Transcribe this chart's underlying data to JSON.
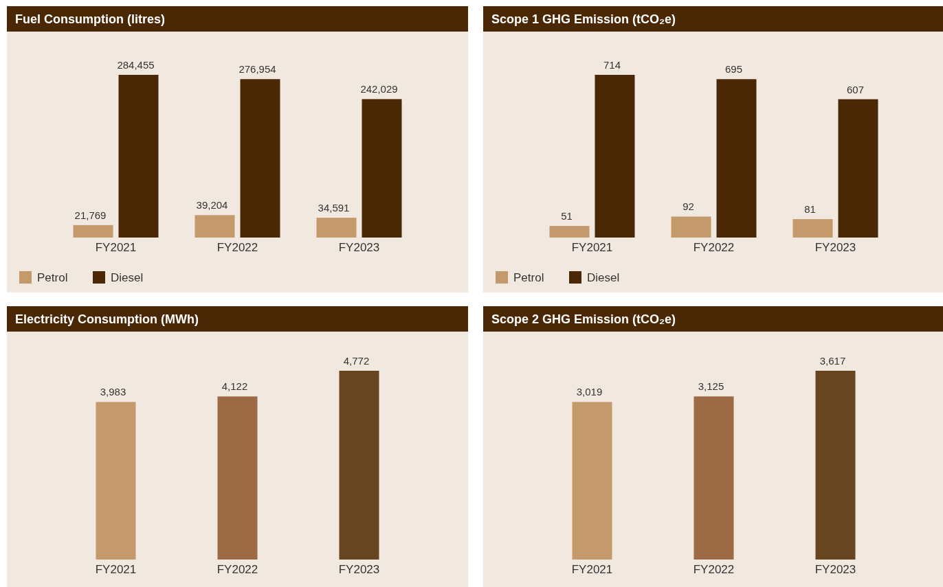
{
  "chart_data": [
    {
      "type": "bar",
      "title": "Fuel Consumption (litres)",
      "categories": [
        "FY2021",
        "FY2022",
        "FY2023"
      ],
      "legend": "bottom left",
      "series": [
        {
          "name": "Petrol",
          "color": "#c49a6c",
          "values": [
            21769,
            39204,
            34591
          ],
          "value_labels": [
            "21,769",
            "39,204",
            "34,591"
          ]
        },
        {
          "name": "Diesel",
          "color": "#4a2805",
          "values": [
            284455,
            276954,
            242029
          ],
          "value_labels": [
            "284,455",
            "276,954",
            "242,029"
          ]
        }
      ]
    },
    {
      "type": "bar",
      "title": "Scope 1 GHG Emission (tCO₂e)",
      "categories": [
        "FY2021",
        "FY2022",
        "FY2023"
      ],
      "legend": "bottom left",
      "series": [
        {
          "name": "Petrol",
          "color": "#c49a6c",
          "values": [
            51,
            92,
            81
          ],
          "value_labels": [
            "51",
            "92",
            "81"
          ]
        },
        {
          "name": "Diesel",
          "color": "#4a2805",
          "values": [
            714,
            695,
            607
          ],
          "value_labels": [
            "714",
            "695",
            "607"
          ]
        }
      ]
    },
    {
      "type": "bar",
      "title": "Electricity Consumption (MWh)",
      "categories": [
        "FY2021",
        "FY2022",
        "FY2023"
      ],
      "values": [
        3983,
        4122,
        4772
      ],
      "value_labels": [
        "3,983",
        "4,122",
        "4,772"
      ],
      "colors": [
        "#c49a6c",
        "#9c6b45",
        "#684521"
      ]
    },
    {
      "type": "bar",
      "title": "Scope 2 GHG Emission (tCO₂e)",
      "categories": [
        "FY2021",
        "FY2022",
        "FY2023"
      ],
      "values": [
        3019,
        3125,
        3617
      ],
      "value_labels": [
        "3,019",
        "3,125",
        "3,617"
      ],
      "colors": [
        "#c49a6c",
        "#9c6b45",
        "#684521"
      ]
    }
  ]
}
